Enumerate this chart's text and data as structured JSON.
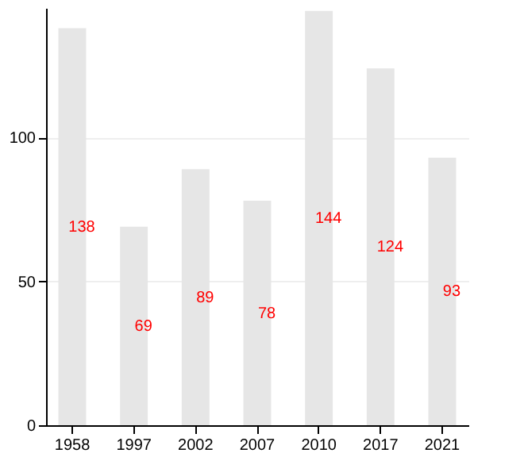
{
  "chart_data": {
    "type": "bar",
    "categories": [
      "1958",
      "1997",
      "2002",
      "2007",
      "2010",
      "2017",
      "2021"
    ],
    "values": [
      138,
      69,
      89,
      78,
      144,
      124,
      93
    ],
    "color": "#e6e6e6",
    "ylim": [
      0,
      145
    ],
    "yticks": [
      0,
      50,
      100
    ],
    "grid": "y",
    "data_labels": true
  }
}
